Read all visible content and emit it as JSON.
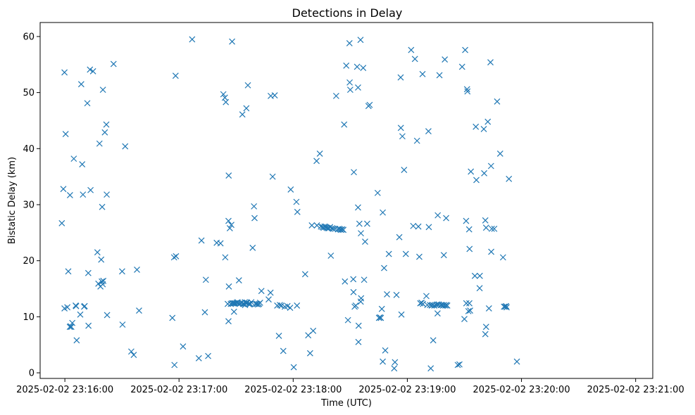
{
  "chart_data": {
    "type": "scatter",
    "title": "Detections in Delay",
    "xlabel": "Time (UTC)",
    "ylabel": "Bistatic Delay (km)",
    "marker": "x",
    "color": "#1f77b4",
    "grid": false,
    "legend": "none",
    "xlim": [
      "2025-02-02 23:15:47",
      "2025-02-02 23:21:09"
    ],
    "ylim": [
      -1.0,
      62.5
    ],
    "x_ticks": [
      "2025-02-02 23:16:00",
      "2025-02-02 23:17:00",
      "2025-02-02 23:18:00",
      "2025-02-02 23:19:00",
      "2025-02-02 23:20:00",
      "2025-02-02 23:21:00"
    ],
    "y_ticks": [
      0,
      10,
      20,
      30,
      40,
      50,
      60
    ],
    "x_unit": "seconds after 2025-02-02 23:16:00",
    "points": [
      [
        -1.6,
        26.7
      ],
      [
        -0.8,
        32.8
      ],
      [
        -0.2,
        53.6
      ],
      [
        0.4,
        42.6
      ],
      [
        -0.2,
        11.5
      ],
      [
        1.3,
        11.7
      ],
      [
        1.8,
        18.1
      ],
      [
        2.7,
        31.7
      ],
      [
        2.6,
        8.2
      ],
      [
        3.0,
        8.3
      ],
      [
        3.4,
        8.2
      ],
      [
        3.9,
        8.9
      ],
      [
        4.7,
        38.2
      ],
      [
        5.7,
        12.0
      ],
      [
        5.9,
        11.9
      ],
      [
        6.2,
        5.8
      ],
      [
        8.1,
        10.4
      ],
      [
        8.6,
        51.5
      ],
      [
        9.1,
        37.2
      ],
      [
        9.5,
        31.8
      ],
      [
        10.1,
        11.8
      ],
      [
        10.4,
        11.9
      ],
      [
        11.8,
        48.1
      ],
      [
        12.3,
        17.8
      ],
      [
        12.4,
        8.4
      ],
      [
        13.2,
        54.1
      ],
      [
        13.5,
        32.6
      ],
      [
        14.8,
        53.8
      ],
      [
        17.1,
        21.5
      ],
      [
        17.6,
        15.9
      ],
      [
        18.2,
        40.9
      ],
      [
        18.7,
        15.4
      ],
      [
        19.1,
        20.2
      ],
      [
        19.4,
        16.3
      ],
      [
        19.6,
        29.6
      ],
      [
        19.9,
        15.8
      ],
      [
        20.2,
        16.4
      ],
      [
        20.0,
        50.5
      ],
      [
        21.0,
        42.9
      ],
      [
        21.8,
        44.3
      ],
      [
        22.0,
        31.8
      ],
      [
        22.2,
        10.3
      ],
      [
        25.6,
        55.1
      ],
      [
        30.1,
        18.1
      ],
      [
        30.3,
        8.6
      ],
      [
        31.7,
        40.4
      ],
      [
        34.9,
        3.8
      ],
      [
        36.2,
        3.2
      ],
      [
        37.9,
        18.4
      ],
      [
        39.0,
        11.1
      ],
      [
        56.5,
        9.8
      ],
      [
        57.4,
        20.6
      ],
      [
        57.6,
        1.4
      ],
      [
        58.4,
        20.8
      ],
      [
        58.2,
        53.0
      ],
      [
        62.1,
        4.7
      ],
      [
        66.9,
        59.5
      ],
      [
        70.4,
        2.6
      ],
      [
        71.8,
        23.6
      ],
      [
        73.6,
        10.8
      ],
      [
        74.1,
        16.6
      ],
      [
        75.3,
        3.0
      ],
      [
        79.8,
        23.2
      ],
      [
        81.8,
        23.1
      ],
      [
        83.3,
        49.7
      ],
      [
        84.1,
        49.1
      ],
      [
        84.3,
        20.6
      ],
      [
        84.6,
        48.3
      ],
      [
        85.6,
        12.3
      ],
      [
        86.0,
        9.2
      ],
      [
        86.0,
        27.1
      ],
      [
        86.1,
        35.2
      ],
      [
        86.2,
        15.4
      ],
      [
        86.7,
        25.8
      ],
      [
        87.2,
        12.3
      ],
      [
        87.5,
        26.4
      ],
      [
        87.8,
        12.4
      ],
      [
        87.9,
        59.1
      ],
      [
        88.5,
        12.4
      ],
      [
        88.9,
        10.9
      ],
      [
        89.0,
        12.4
      ],
      [
        89.6,
        12.4
      ],
      [
        90.3,
        12.5
      ],
      [
        90.8,
        12.6
      ],
      [
        91.1,
        12.4
      ],
      [
        91.5,
        16.5
      ],
      [
        91.8,
        12.3
      ],
      [
        92.3,
        12.4
      ],
      [
        92.9,
        12.5
      ],
      [
        93.3,
        46.1
      ],
      [
        93.6,
        12.3
      ],
      [
        94.2,
        12.3
      ],
      [
        94.6,
        12.6
      ],
      [
        94.7,
        12.1
      ],
      [
        95.4,
        47.2
      ],
      [
        95.3,
        12.5
      ],
      [
        95.8,
        12.5
      ],
      [
        96.2,
        51.3
      ],
      [
        96.6,
        12.3
      ],
      [
        97.1,
        12.2
      ],
      [
        97.5,
        12.3
      ],
      [
        98.0,
        12.6
      ],
      [
        98.7,
        22.3
      ],
      [
        99.4,
        29.7
      ],
      [
        99.7,
        27.6
      ],
      [
        100.2,
        12.3
      ],
      [
        100.9,
        12.3
      ],
      [
        101.5,
        12.2
      ],
      [
        102.1,
        12.3
      ],
      [
        102.6,
        12.5
      ],
      [
        103.3,
        14.6
      ],
      [
        107.1,
        13.1
      ],
      [
        108.1,
        14.3
      ],
      [
        108.2,
        49.4
      ],
      [
        109.2,
        35.0
      ],
      [
        110.3,
        49.5
      ],
      [
        111.6,
        12.0
      ],
      [
        112.5,
        6.6
      ],
      [
        113.0,
        12.1
      ],
      [
        113.8,
        12.0
      ],
      [
        114.8,
        3.9
      ],
      [
        115.6,
        11.8
      ],
      [
        117.0,
        11.9
      ],
      [
        118.4,
        11.6
      ],
      [
        118.7,
        32.7
      ],
      [
        120.3,
        1.0
      ],
      [
        121.7,
        30.5
      ],
      [
        122.0,
        12.0
      ],
      [
        122.2,
        28.7
      ],
      [
        126.3,
        17.6
      ],
      [
        127.9,
        6.7
      ],
      [
        128.9,
        3.5
      ],
      [
        129.8,
        26.3
      ],
      [
        130.5,
        7.5
      ],
      [
        132.3,
        37.8
      ],
      [
        132.5,
        26.3
      ],
      [
        134.0,
        39.1
      ],
      [
        134.6,
        26.1
      ],
      [
        135.4,
        26.0
      ],
      [
        136.0,
        25.9
      ],
      [
        136.5,
        26.1
      ],
      [
        137.1,
        26.0
      ],
      [
        137.6,
        25.9
      ],
      [
        138.2,
        25.8
      ],
      [
        138.9,
        25.8
      ],
      [
        139.4,
        26.0
      ],
      [
        139.8,
        20.9
      ],
      [
        140.5,
        25.8
      ],
      [
        141.1,
        25.7
      ],
      [
        142.1,
        25.7
      ],
      [
        142.6,
        49.4
      ],
      [
        143.5,
        25.6
      ],
      [
        144.1,
        25.7
      ],
      [
        144.7,
        25.6
      ],
      [
        145.2,
        25.5
      ],
      [
        145.8,
        25.6
      ],
      [
        146.4,
        25.5
      ],
      [
        146.8,
        44.3
      ],
      [
        147.2,
        16.3
      ],
      [
        147.9,
        54.8
      ],
      [
        148.8,
        9.4
      ],
      [
        149.6,
        58.8
      ],
      [
        149.7,
        51.8
      ],
      [
        150.0,
        50.5
      ],
      [
        151.6,
        16.7
      ],
      [
        151.7,
        14.4
      ],
      [
        151.9,
        35.8
      ],
      [
        152.3,
        11.8
      ],
      [
        152.9,
        12.0
      ],
      [
        153.6,
        54.6
      ],
      [
        154.1,
        50.9
      ],
      [
        154.1,
        29.5
      ],
      [
        154.3,
        5.5
      ],
      [
        154.4,
        8.4
      ],
      [
        154.8,
        26.6
      ],
      [
        155.4,
        59.4
      ],
      [
        155.5,
        12.7
      ],
      [
        155.6,
        24.9
      ],
      [
        155.7,
        13.3
      ],
      [
        156.8,
        54.4
      ],
      [
        157.3,
        16.6
      ],
      [
        157.8,
        23.4
      ],
      [
        158.9,
        26.6
      ],
      [
        159.6,
        47.6
      ],
      [
        160.2,
        47.8
      ],
      [
        164.4,
        32.1
      ],
      [
        165.1,
        9.8
      ],
      [
        165.6,
        9.9
      ],
      [
        166.1,
        9.8
      ],
      [
        166.6,
        11.4
      ],
      [
        167.1,
        28.6
      ],
      [
        167.1,
        2.0
      ],
      [
        167.8,
        18.7
      ],
      [
        168.4,
        4.0
      ],
      [
        169.3,
        14.0
      ],
      [
        170.3,
        21.2
      ],
      [
        173.1,
        0.8
      ],
      [
        173.5,
        1.9
      ],
      [
        174.3,
        13.9
      ],
      [
        175.8,
        24.2
      ],
      [
        176.5,
        52.7
      ],
      [
        176.6,
        43.7
      ],
      [
        176.9,
        10.4
      ],
      [
        177.4,
        42.2
      ],
      [
        178.3,
        36.2
      ],
      [
        179.2,
        21.2
      ],
      [
        182.0,
        57.6
      ],
      [
        183.1,
        26.2
      ],
      [
        184.0,
        56.0
      ],
      [
        185.1,
        41.4
      ],
      [
        185.8,
        26.1
      ],
      [
        186.3,
        20.7
      ],
      [
        186.8,
        12.4
      ],
      [
        187.5,
        12.5
      ],
      [
        188.0,
        53.3
      ],
      [
        188.2,
        12.3
      ],
      [
        190.0,
        13.7
      ],
      [
        190.5,
        12.1
      ],
      [
        191.1,
        43.1
      ],
      [
        191.3,
        26.0
      ],
      [
        191.9,
        12.1
      ],
      [
        192.3,
        0.8
      ],
      [
        192.8,
        12.0
      ],
      [
        193.3,
        12.1
      ],
      [
        193.6,
        5.8
      ],
      [
        194.2,
        12.0
      ],
      [
        195.1,
        12.1
      ],
      [
        195.7,
        12.2
      ],
      [
        195.9,
        10.6
      ],
      [
        196.0,
        28.1
      ],
      [
        196.5,
        12.2
      ],
      [
        196.9,
        53.1
      ],
      [
        197.7,
        12.1
      ],
      [
        198.1,
        12.1
      ],
      [
        198.8,
        12.0
      ],
      [
        199.2,
        21.0
      ],
      [
        199.3,
        12.1
      ],
      [
        199.7,
        55.9
      ],
      [
        200.0,
        12.0
      ],
      [
        200.4,
        27.6
      ],
      [
        200.5,
        12.1
      ],
      [
        201.0,
        12.0
      ],
      [
        206.5,
        1.4
      ],
      [
        207.4,
        1.5
      ],
      [
        208.8,
        54.6
      ],
      [
        210.0,
        9.6
      ],
      [
        210.4,
        57.6
      ],
      [
        210.9,
        27.1
      ],
      [
        211.0,
        12.4
      ],
      [
        211.4,
        50.6
      ],
      [
        211.6,
        50.2
      ],
      [
        212.1,
        11.0
      ],
      [
        212.5,
        25.6
      ],
      [
        212.6,
        12.4
      ],
      [
        212.7,
        22.1
      ],
      [
        213.0,
        11.1
      ],
      [
        213.4,
        35.9
      ],
      [
        215.5,
        17.3
      ],
      [
        216.0,
        43.9
      ],
      [
        216.3,
        34.4
      ],
      [
        218.1,
        17.3
      ],
      [
        218.0,
        15.1
      ],
      [
        220.2,
        43.5
      ],
      [
        220.4,
        35.6
      ],
      [
        221.0,
        6.9
      ],
      [
        221.4,
        8.2
      ],
      [
        221.0,
        27.2
      ],
      [
        221.4,
        25.9
      ],
      [
        222.3,
        44.8
      ],
      [
        222.9,
        11.5
      ],
      [
        223.7,
        55.4
      ],
      [
        224.0,
        36.9
      ],
      [
        224.1,
        21.6
      ],
      [
        224.4,
        25.7
      ],
      [
        225.7,
        25.7
      ],
      [
        227.2,
        48.4
      ],
      [
        228.8,
        39.1
      ],
      [
        230.3,
        20.6
      ],
      [
        230.8,
        11.8
      ],
      [
        231.4,
        11.8
      ],
      [
        231.9,
        11.9
      ],
      [
        232.2,
        11.7
      ],
      [
        233.4,
        34.6
      ],
      [
        237.6,
        2.0
      ]
    ]
  }
}
